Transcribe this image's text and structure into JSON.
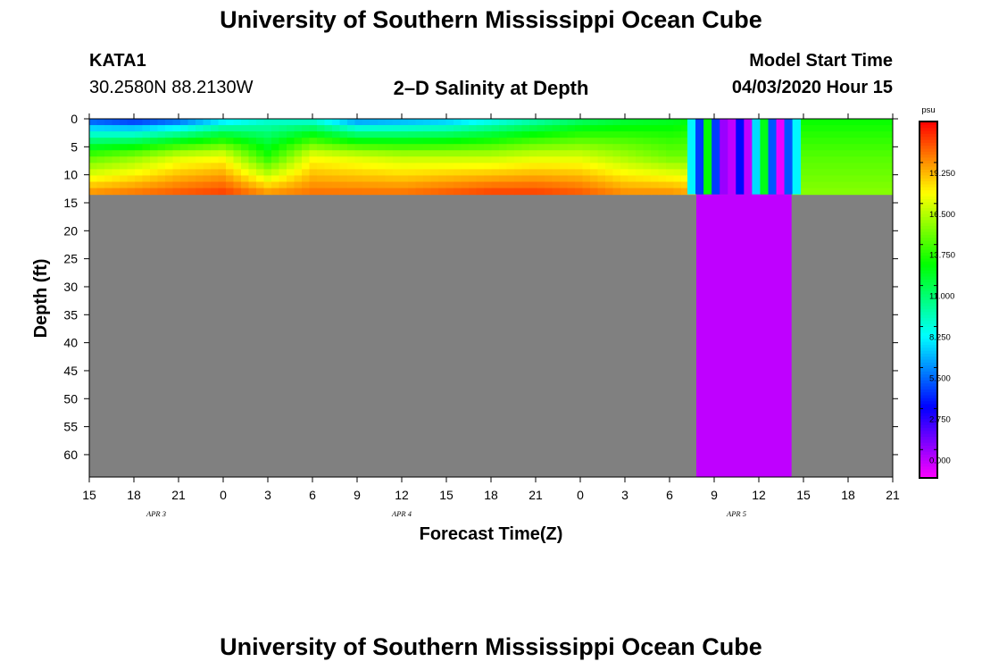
{
  "page": {
    "title_top": "University of Southern Mississippi Ocean Cube",
    "title_bottom": "University of Southern Mississippi Ocean Cube",
    "station": "KATA1",
    "coords": "30.2580N 88.2130W",
    "plot_title": "2–D Salinity at Depth",
    "model_start_label": "Model Start Time",
    "model_start_value": "04/03/2020 Hour 15"
  },
  "chart_data": {
    "type": "heatmap",
    "title": "2–D Salinity at Depth",
    "xlabel": "Forecast Time(Z)",
    "ylabel": "Depth (ft)",
    "colorbar_unit": "psu",
    "x_ticks": [
      "15",
      "18",
      "21",
      "0",
      "3",
      "6",
      "9",
      "12",
      "15",
      "18",
      "21",
      "0",
      "3",
      "6",
      "9",
      "12",
      "15",
      "18",
      "21"
    ],
    "date_labels": [
      {
        "text": "APR 3",
        "tick_index": 1.5
      },
      {
        "text": "APR 4",
        "tick_index": 7
      },
      {
        "text": "APR 5",
        "tick_index": 14.5
      }
    ],
    "xlim_hours": [
      0,
      54
    ],
    "y_ticks": [
      0,
      5,
      10,
      15,
      20,
      25,
      30,
      35,
      40,
      45,
      50,
      55,
      60
    ],
    "ylim": [
      0,
      64
    ],
    "y_reversed": true,
    "water_depth_ft": 13.5,
    "colorbar_ticks": [
      "19.250",
      "16.500",
      "13.750",
      "11.000",
      "8.250",
      "5.500",
      "2.750",
      "0.000"
    ],
    "colorbar_tick_values": [
      19.25,
      16.5,
      13.75,
      11.0,
      8.25,
      5.5,
      2.75,
      0.0
    ],
    "color_range": [
      -1.9,
      22.0
    ],
    "no_data_color": "#808080",
    "anomaly": {
      "x_hours": [
        40.8,
        47.2
      ],
      "value_below_water": -0.7,
      "band_values": [
        7.5,
        4.0,
        12.5,
        4.0,
        0.0,
        -0.7,
        3.0,
        -0.7,
        7.0,
        12.0,
        4.5,
        -1.5,
        4.5,
        7.5
      ]
    },
    "salinity_profile": {
      "hours": [
        0,
        3,
        6,
        9,
        12,
        15,
        18,
        21,
        24,
        27,
        30,
        33,
        36,
        39,
        40.8
      ],
      "surface": [
        3.5,
        2.5,
        3.5,
        6.0,
        8.0,
        7.5,
        4.5,
        5.0,
        5.5,
        7.0,
        8.5,
        10.0,
        11.0,
        11.5,
        12.0
      ],
      "mid": [
        14.0,
        15.0,
        16.5,
        17.0,
        13.0,
        17.0,
        16.5,
        16.0,
        16.0,
        16.0,
        16.5,
        16.5,
        15.5,
        14.5,
        14.5
      ],
      "bottom": [
        19.5,
        20.0,
        20.5,
        21.0,
        19.5,
        20.0,
        20.0,
        20.0,
        20.5,
        21.0,
        21.0,
        20.5,
        19.5,
        19.5,
        19.0
      ],
      "after_anomaly": {
        "hours": [
          47.2,
          54
        ],
        "surface": 12.5,
        "mid": 14.0,
        "bottom": 15.0
      }
    }
  }
}
